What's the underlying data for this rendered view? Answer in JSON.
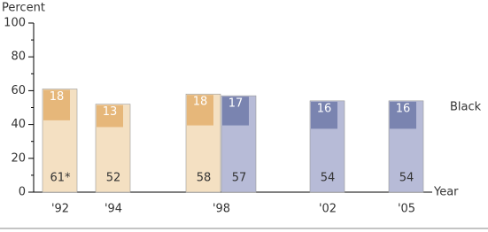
{
  "chart_data": {
    "type": "bar",
    "y_label": "Percent",
    "x_label": "Year",
    "annotation": "Black",
    "categories": [
      "'92",
      "'94",
      "'98",
      "'02",
      "'05"
    ],
    "series": [
      {
        "color": "#f4e0c2",
        "gap_color": "#e6b77a",
        "values": [
          61,
          52,
          58,
          null,
          null
        ],
        "value_labels": [
          "61*",
          "52",
          "58",
          null,
          null
        ],
        "gaps": [
          18,
          13,
          18,
          null,
          null
        ]
      },
      {
        "color": "#b7bbd7",
        "gap_color": "#7a84b0",
        "values": [
          null,
          null,
          57,
          54,
          54
        ],
        "value_labels": [
          null,
          null,
          "57",
          "54",
          "54"
        ],
        "gaps": [
          null,
          null,
          17,
          16,
          16
        ]
      }
    ],
    "ylim": [
      0,
      100
    ],
    "yticks": [
      0,
      20,
      40,
      60,
      80,
      100
    ],
    "minor_yticks": [
      10,
      30,
      50,
      70,
      90
    ]
  }
}
